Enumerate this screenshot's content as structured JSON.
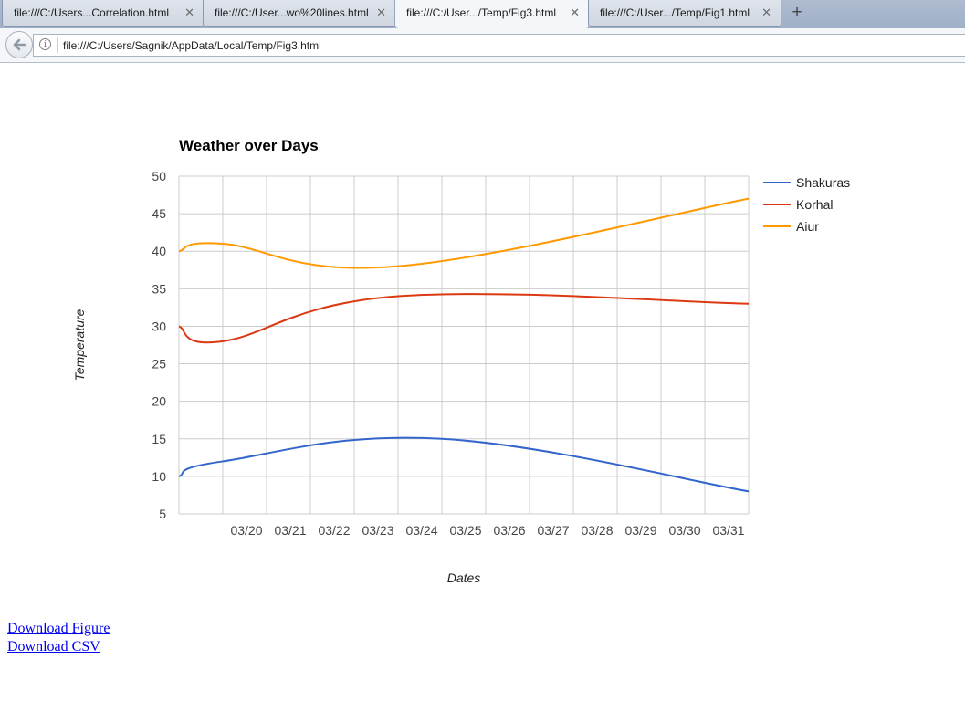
{
  "browser": {
    "tabs": [
      {
        "title": "file:///C:/Users...Correlation.html",
        "active": false
      },
      {
        "title": "file:///C:/User...wo%20lines.html",
        "active": false
      },
      {
        "title": "file:///C:/User.../Temp/Fig3.html",
        "active": true
      },
      {
        "title": "file:///C:/User.../Temp/Fig1.html",
        "active": false
      }
    ],
    "close_glyph": "✕",
    "new_tab_glyph": "+",
    "url": "file:///C:/Users/Sagnik/AppData/Local/Temp/Fig3.html",
    "info_glyph": "i"
  },
  "links": {
    "download_figure": "Download Figure",
    "download_csv": "Download CSV"
  },
  "chart_data": {
    "type": "line",
    "title": "Weather over Days",
    "xlabel": "Dates",
    "ylabel": "Temperature",
    "categories": [
      "03/20",
      "03/21",
      "03/22",
      "03/23",
      "03/24",
      "03/25",
      "03/26",
      "03/27",
      "03/28",
      "03/29",
      "03/30",
      "03/31"
    ],
    "x_ticks": [
      "03/20",
      "03/21",
      "03/22",
      "03/23",
      "03/24",
      "03/25",
      "03/26",
      "03/27",
      "03/28",
      "03/29",
      "03/30",
      "03/31"
    ],
    "x": [
      "03/19",
      "03/20",
      "03/24",
      "03/25",
      "03/31",
      "04/01"
    ],
    "xlim": [
      "03/19",
      "04/01"
    ],
    "ylim": [
      5,
      50
    ],
    "yticks": [
      5,
      10,
      15,
      20,
      25,
      30,
      35,
      40,
      45,
      50
    ],
    "grid": true,
    "legend_position": "right",
    "series": [
      {
        "name": "Shakuras",
        "color": "#3366cc",
        "values": [
          10,
          12,
          null,
          15,
          null,
          8
        ]
      },
      {
        "name": "Korhal",
        "color": "#dc3912",
        "values": [
          30,
          28,
          34,
          null,
          null,
          33
        ]
      },
      {
        "name": "Aiur",
        "color": "#ff9900",
        "values": [
          40,
          41,
          38,
          null,
          null,
          47
        ]
      }
    ]
  }
}
